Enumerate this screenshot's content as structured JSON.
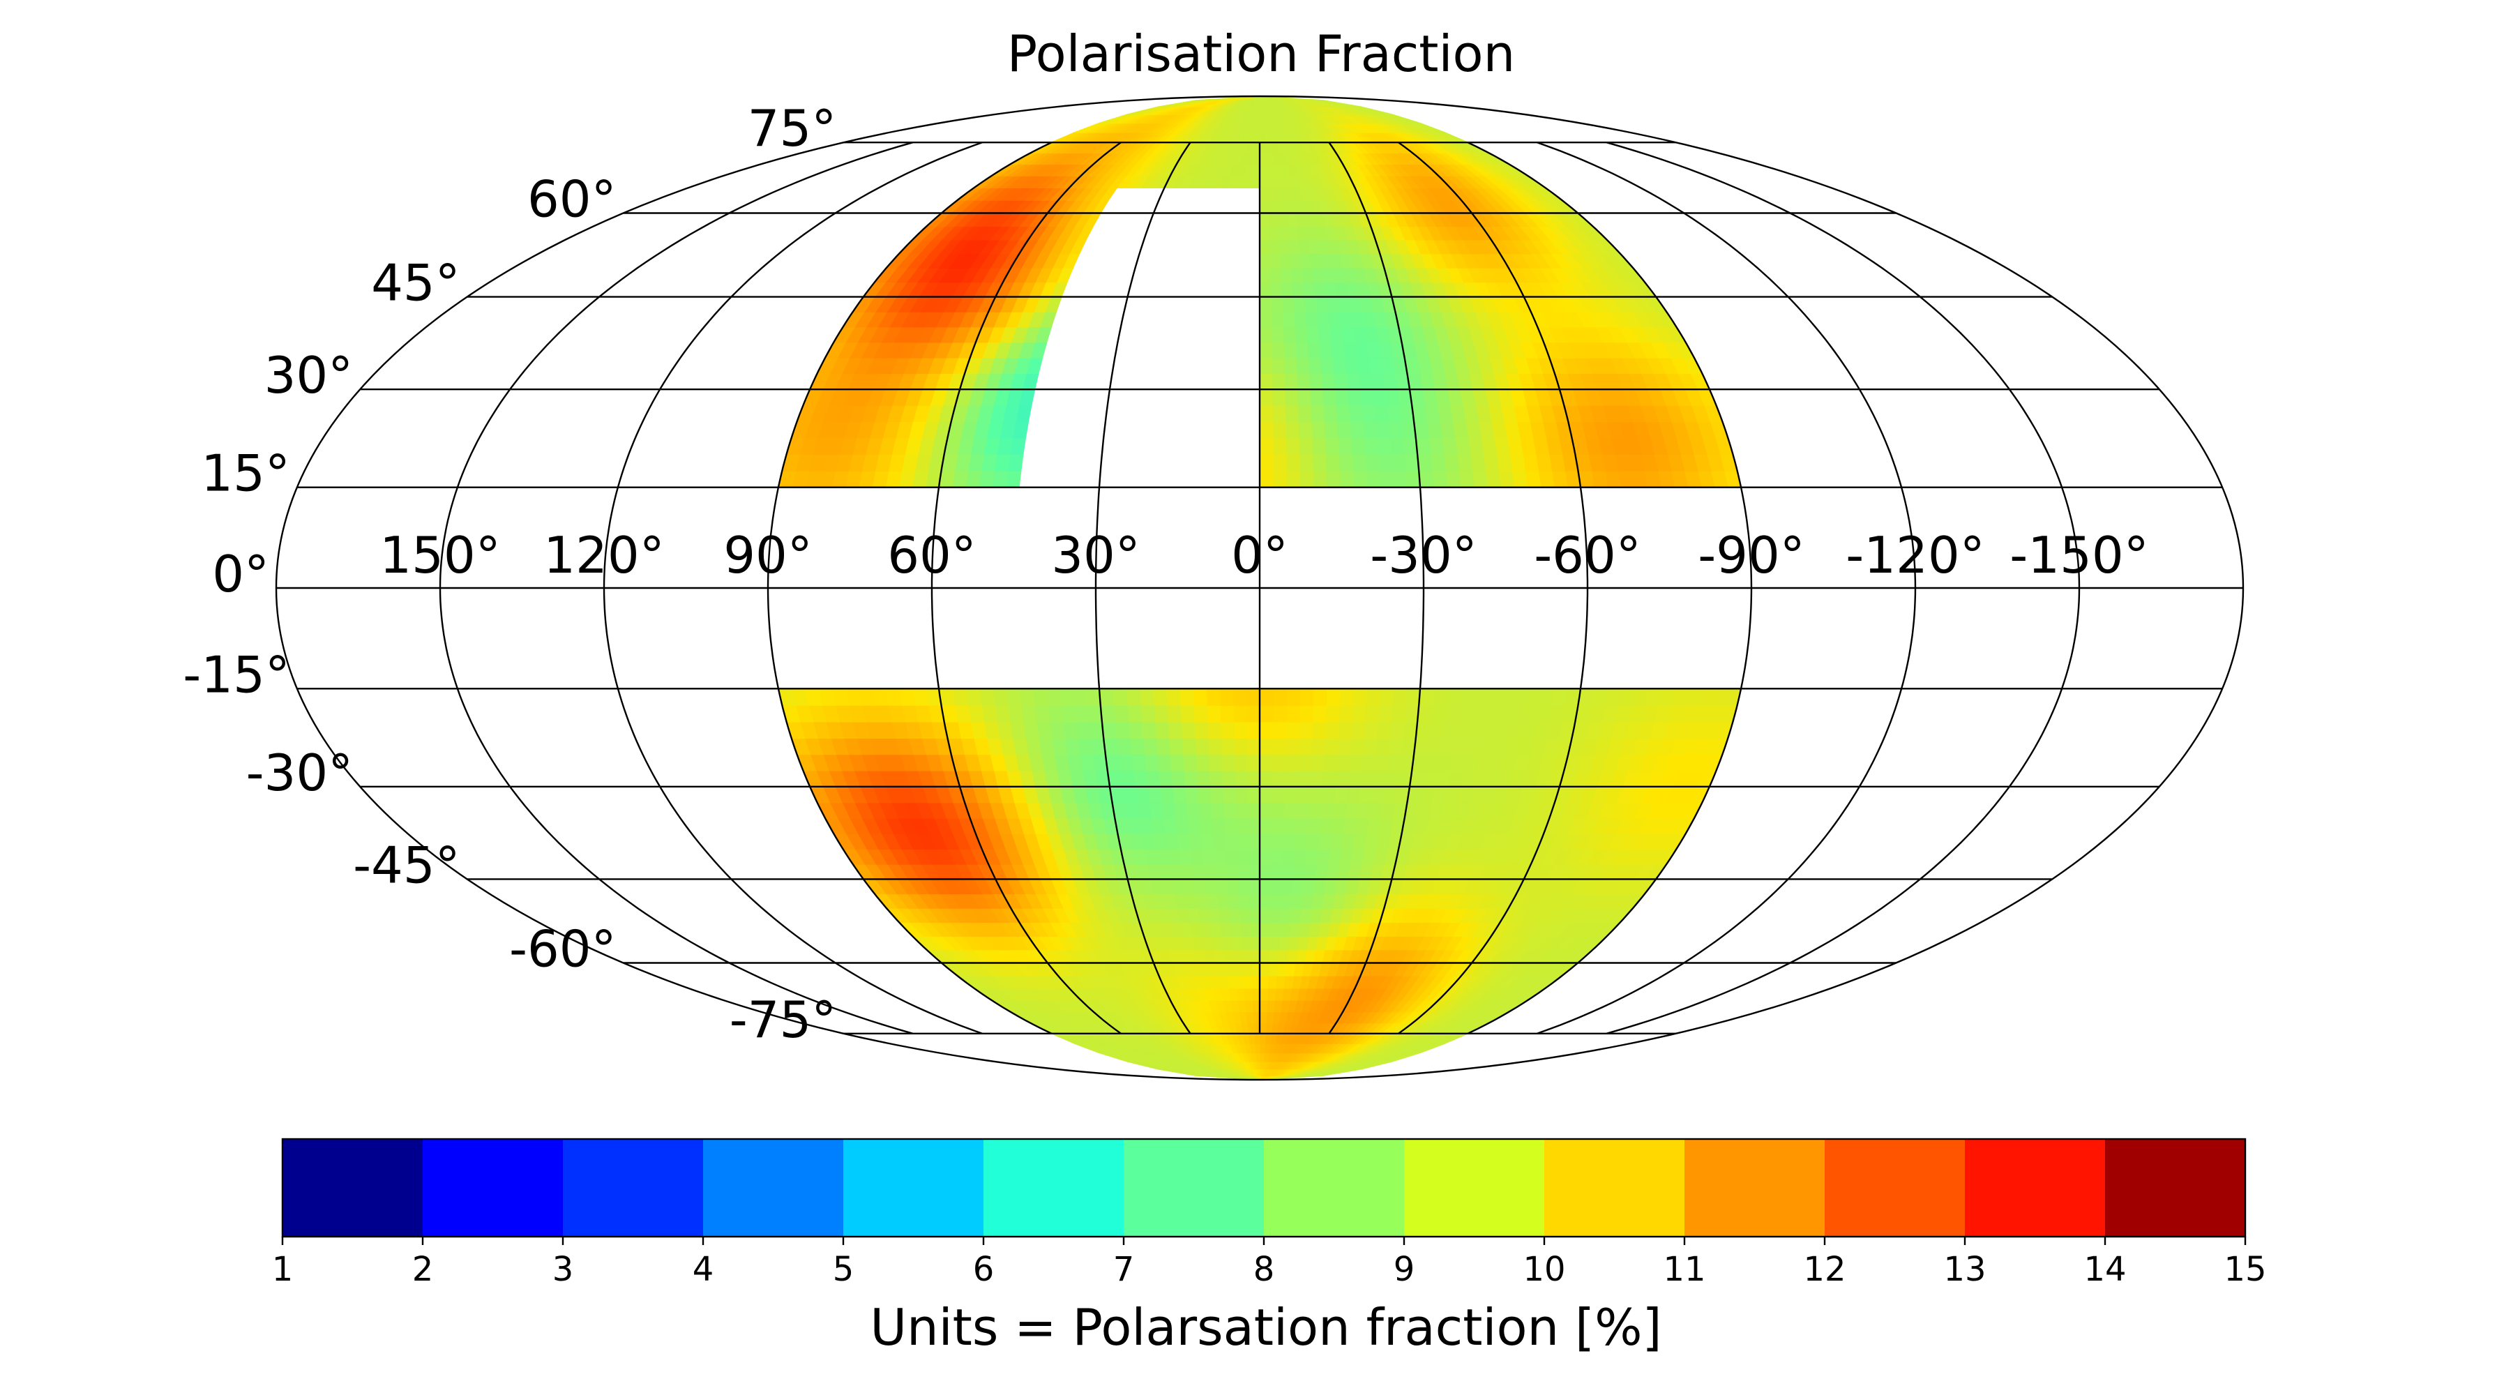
{
  "chart_data": {
    "type": "heatmap",
    "projection": "mollweide",
    "title": "Polarisation Fraction",
    "grid": true,
    "lon_ticks": [
      150,
      120,
      90,
      60,
      30,
      0,
      -30,
      -60,
      -90,
      -120,
      -150
    ],
    "lon_labels": [
      "150°",
      "120°",
      "90°",
      "60°",
      "30°",
      "0°",
      "-30°",
      "-60°",
      "-90°",
      "-120°",
      "-150°"
    ],
    "lat_ticks": [
      75,
      60,
      45,
      30,
      15,
      0,
      -15,
      -30,
      -45,
      -60,
      -75
    ],
    "lat_labels": [
      "75°",
      "60°",
      "45°",
      "30°",
      "15°",
      "0°",
      "-15°",
      "-30°",
      "-45°",
      "-60°",
      "-75°"
    ],
    "coverage": {
      "lon_range": [
        -90,
        90
      ],
      "lat_bands": [
        [
          -90,
          -15
        ],
        [
          15,
          90
        ]
      ],
      "gap_region": {
        "lon_range": [
          0,
          45
        ],
        "lat_range": [
          15,
          65
        ]
      }
    },
    "field": {
      "baseline": 9.3,
      "features": [
        {
          "lon": 70,
          "lat": 48,
          "value": 12.6
        },
        {
          "lon": 82,
          "lat": 22,
          "value": 11.0
        },
        {
          "lon": 80,
          "lat": 62,
          "value": 11.0
        },
        {
          "lon": 55,
          "lat": 78,
          "value": 10.2
        },
        {
          "lon": 45,
          "lat": 25,
          "value": 7.8
        },
        {
          "lon": 35,
          "lat": 35,
          "value": 8.2
        },
        {
          "lon": -20,
          "lat": 40,
          "value": 8.3
        },
        {
          "lon": -20,
          "lat": 20,
          "value": 8.4
        },
        {
          "lon": -55,
          "lat": 62,
          "value": 11.2
        },
        {
          "lon": -70,
          "lat": 22,
          "value": 11.3
        },
        {
          "lon": 5,
          "lat": 20,
          "value": 10.5
        },
        {
          "lon": 2,
          "lat": -15,
          "value": 10.8
        },
        {
          "lon": 75,
          "lat": -35,
          "value": 11.8
        },
        {
          "lon": 65,
          "lat": -40,
          "value": 11.0
        },
        {
          "lon": 30,
          "lat": -30,
          "value": 8.1
        },
        {
          "lon": -35,
          "lat": -65,
          "value": 11.2
        },
        {
          "lon": -10,
          "lat": -75,
          "value": 10.7
        },
        {
          "lon": 20,
          "lat": -70,
          "value": 9.8
        },
        {
          "lon": -10,
          "lat": -50,
          "value": 8.5
        },
        {
          "lon": 0,
          "lat": -25,
          "value": 8.8
        },
        {
          "lon": -85,
          "lat": -30,
          "value": 10.0
        }
      ]
    },
    "colorbar": {
      "label": "Units = Polarsation fraction [%]",
      "min": 1,
      "max": 15,
      "ticks": [
        "1",
        "2",
        "3",
        "4",
        "5",
        "6",
        "7",
        "8",
        "9",
        "10",
        "11",
        "12",
        "13",
        "14",
        "15"
      ],
      "bin_colors": [
        "#00008f",
        "#0000ff",
        "#0030ff",
        "#0080ff",
        "#00ccff",
        "#20ffd8",
        "#5bff9c",
        "#96ff5a",
        "#d4ff1e",
        "#ffd800",
        "#ff9600",
        "#ff5400",
        "#ff1400",
        "#a00000"
      ]
    }
  }
}
